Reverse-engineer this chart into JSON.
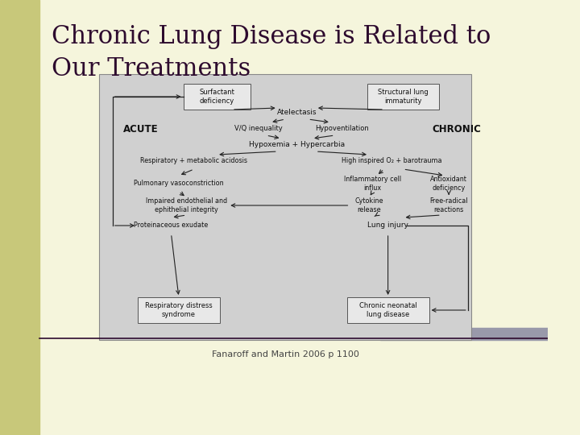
{
  "title_line1": "Chronic Lung Disease is Related to",
  "title_line2": "Our Treatments",
  "title_color": "#2d0a2e",
  "title_fontsize": 22,
  "bg_color": "#f5f5dc",
  "left_bar_color": "#c8c87a",
  "top_bar_color": "#9999aa",
  "caption": "Fanaroff and Martin 2006 p 1100",
  "caption_fontsize": 8,
  "divider_color": "#2d0a2e",
  "diagram_bg": "#d0d0d0",
  "diagram_border": "#888888",
  "box_bg": "#e8e8e8",
  "arrow_color": "#222222",
  "text_color": "#111111"
}
